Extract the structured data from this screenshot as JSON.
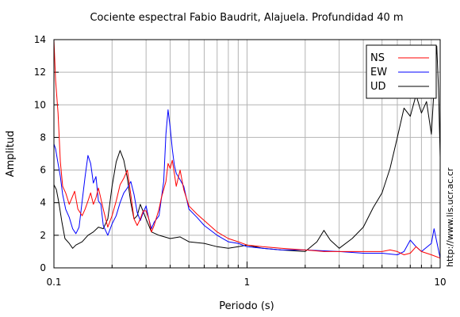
{
  "side_url": "http://www.lis.ucr.ac.cr",
  "chart_data": {
    "type": "line",
    "title": "Cociente espectral Fabio Baudrit, Alajuela. Profundidad 40 m",
    "xlabel": "Periodo (s)",
    "ylabel": "Amplitud",
    "xscale": "log",
    "xlim": [
      0.1,
      10
    ],
    "ylim": [
      0,
      14
    ],
    "x_ticks": [
      0.1,
      1,
      10
    ],
    "x_tick_labels": [
      "0.1",
      "1",
      "10"
    ],
    "y_ticks": [
      0,
      2,
      4,
      6,
      8,
      10,
      12,
      14
    ],
    "y_tick_labels": [
      "0",
      "2",
      "4",
      "6",
      "8",
      "10",
      "12",
      "14"
    ],
    "grid": true,
    "legend_position": "top-right",
    "series": [
      {
        "name": "NS",
        "color": "#ff0000",
        "points": [
          [
            0.1,
            14.0
          ],
          [
            0.102,
            11.5
          ],
          [
            0.105,
            9.5
          ],
          [
            0.108,
            6.5
          ],
          [
            0.111,
            5.0
          ],
          [
            0.115,
            4.6
          ],
          [
            0.12,
            3.9
          ],
          [
            0.125,
            4.4
          ],
          [
            0.128,
            4.7
          ],
          [
            0.133,
            3.6
          ],
          [
            0.14,
            3.2
          ],
          [
            0.145,
            3.6
          ],
          [
            0.15,
            4.1
          ],
          [
            0.155,
            4.6
          ],
          [
            0.16,
            3.9
          ],
          [
            0.165,
            4.3
          ],
          [
            0.17,
            4.9
          ],
          [
            0.18,
            3.6
          ],
          [
            0.19,
            2.5
          ],
          [
            0.2,
            3.2
          ],
          [
            0.21,
            4.1
          ],
          [
            0.22,
            5.1
          ],
          [
            0.23,
            5.5
          ],
          [
            0.24,
            6.0
          ],
          [
            0.25,
            4.5
          ],
          [
            0.26,
            3.0
          ],
          [
            0.27,
            2.6
          ],
          [
            0.28,
            3.0
          ],
          [
            0.29,
            3.5
          ],
          [
            0.3,
            3.5
          ],
          [
            0.31,
            3.0
          ],
          [
            0.32,
            2.2
          ],
          [
            0.33,
            2.6
          ],
          [
            0.35,
            3.6
          ],
          [
            0.36,
            4.3
          ],
          [
            0.38,
            5.3
          ],
          [
            0.39,
            6.4
          ],
          [
            0.4,
            6.1
          ],
          [
            0.41,
            6.6
          ],
          [
            0.42,
            5.8
          ],
          [
            0.43,
            5.0
          ],
          [
            0.45,
            6.0
          ],
          [
            0.47,
            4.8
          ],
          [
            0.5,
            3.8
          ],
          [
            0.55,
            3.3
          ],
          [
            0.6,
            2.9
          ],
          [
            0.7,
            2.2
          ],
          [
            0.8,
            1.8
          ],
          [
            0.9,
            1.6
          ],
          [
            1.0,
            1.4
          ],
          [
            1.2,
            1.3
          ],
          [
            1.5,
            1.2
          ],
          [
            2.0,
            1.1
          ],
          [
            2.5,
            1.0
          ],
          [
            3.0,
            1.0
          ],
          [
            4.0,
            1.0
          ],
          [
            5.0,
            1.0
          ],
          [
            5.5,
            1.1
          ],
          [
            6.0,
            1.0
          ],
          [
            6.5,
            0.8
          ],
          [
            7.0,
            0.9
          ],
          [
            7.5,
            1.3
          ],
          [
            8.0,
            1.0
          ],
          [
            9.0,
            0.8
          ],
          [
            10.0,
            0.6
          ]
        ]
      },
      {
        "name": "EW",
        "color": "#0000ff",
        "points": [
          [
            0.1,
            7.6
          ],
          [
            0.102,
            7.3
          ],
          [
            0.105,
            6.4
          ],
          [
            0.108,
            5.6
          ],
          [
            0.111,
            4.5
          ],
          [
            0.115,
            3.6
          ],
          [
            0.12,
            3.1
          ],
          [
            0.125,
            2.4
          ],
          [
            0.13,
            2.1
          ],
          [
            0.135,
            2.5
          ],
          [
            0.14,
            4.1
          ],
          [
            0.145,
            5.6
          ],
          [
            0.15,
            6.9
          ],
          [
            0.155,
            6.4
          ],
          [
            0.16,
            5.2
          ],
          [
            0.165,
            5.6
          ],
          [
            0.17,
            4.1
          ],
          [
            0.175,
            3.9
          ],
          [
            0.18,
            2.6
          ],
          [
            0.19,
            2.0
          ],
          [
            0.2,
            2.7
          ],
          [
            0.21,
            3.2
          ],
          [
            0.22,
            4.0
          ],
          [
            0.23,
            4.6
          ],
          [
            0.24,
            4.9
          ],
          [
            0.25,
            5.3
          ],
          [
            0.26,
            4.5
          ],
          [
            0.27,
            3.4
          ],
          [
            0.28,
            2.9
          ],
          [
            0.29,
            3.4
          ],
          [
            0.3,
            3.8
          ],
          [
            0.31,
            3.0
          ],
          [
            0.32,
            2.4
          ],
          [
            0.33,
            2.8
          ],
          [
            0.35,
            3.2
          ],
          [
            0.37,
            5.3
          ],
          [
            0.38,
            8.2
          ],
          [
            0.39,
            9.7
          ],
          [
            0.4,
            8.6
          ],
          [
            0.41,
            7.3
          ],
          [
            0.42,
            6.3
          ],
          [
            0.43,
            5.8
          ],
          [
            0.45,
            5.4
          ],
          [
            0.47,
            5.0
          ],
          [
            0.5,
            3.6
          ],
          [
            0.55,
            3.1
          ],
          [
            0.6,
            2.6
          ],
          [
            0.7,
            2.0
          ],
          [
            0.8,
            1.6
          ],
          [
            0.9,
            1.5
          ],
          [
            1.0,
            1.3
          ],
          [
            1.2,
            1.2
          ],
          [
            1.5,
            1.1
          ],
          [
            2.0,
            1.1
          ],
          [
            3.0,
            1.0
          ],
          [
            4.0,
            0.9
          ],
          [
            5.0,
            0.9
          ],
          [
            6.0,
            0.8
          ],
          [
            6.5,
            1.0
          ],
          [
            7.0,
            1.7
          ],
          [
            7.5,
            1.3
          ],
          [
            8.0,
            1.0
          ],
          [
            9.0,
            1.5
          ],
          [
            9.3,
            2.4
          ],
          [
            9.6,
            1.6
          ],
          [
            10.0,
            0.6
          ]
        ]
      },
      {
        "name": "UD",
        "color": "#000000",
        "points": [
          [
            0.1,
            5.1
          ],
          [
            0.103,
            4.8
          ],
          [
            0.106,
            4.0
          ],
          [
            0.11,
            2.8
          ],
          [
            0.114,
            1.8
          ],
          [
            0.12,
            1.5
          ],
          [
            0.125,
            1.2
          ],
          [
            0.13,
            1.4
          ],
          [
            0.14,
            1.6
          ],
          [
            0.15,
            2.0
          ],
          [
            0.16,
            2.2
          ],
          [
            0.17,
            2.5
          ],
          [
            0.18,
            2.4
          ],
          [
            0.19,
            3.0
          ],
          [
            0.2,
            5.0
          ],
          [
            0.21,
            6.5
          ],
          [
            0.22,
            7.2
          ],
          [
            0.23,
            6.6
          ],
          [
            0.24,
            5.5
          ],
          [
            0.25,
            4.0
          ],
          [
            0.26,
            3.0
          ],
          [
            0.27,
            3.2
          ],
          [
            0.28,
            3.9
          ],
          [
            0.3,
            3.0
          ],
          [
            0.32,
            2.2
          ],
          [
            0.35,
            2.0
          ],
          [
            0.4,
            1.8
          ],
          [
            0.45,
            1.9
          ],
          [
            0.5,
            1.6
          ],
          [
            0.6,
            1.5
          ],
          [
            0.7,
            1.3
          ],
          [
            0.8,
            1.2
          ],
          [
            0.9,
            1.3
          ],
          [
            1.0,
            1.4
          ],
          [
            1.2,
            1.2
          ],
          [
            1.5,
            1.1
          ],
          [
            2.0,
            1.0
          ],
          [
            2.3,
            1.6
          ],
          [
            2.5,
            2.3
          ],
          [
            2.7,
            1.7
          ],
          [
            3.0,
            1.2
          ],
          [
            3.5,
            1.8
          ],
          [
            4.0,
            2.5
          ],
          [
            4.5,
            3.7
          ],
          [
            5.0,
            4.6
          ],
          [
            5.5,
            6.1
          ],
          [
            6.0,
            8.0
          ],
          [
            6.5,
            9.8
          ],
          [
            7.0,
            9.3
          ],
          [
            7.5,
            10.6
          ],
          [
            8.0,
            9.5
          ],
          [
            8.5,
            10.2
          ],
          [
            9.0,
            8.2
          ],
          [
            9.3,
            11.0
          ],
          [
            9.6,
            13.6
          ],
          [
            9.8,
            11.0
          ],
          [
            10.0,
            6.8
          ]
        ]
      }
    ]
  }
}
